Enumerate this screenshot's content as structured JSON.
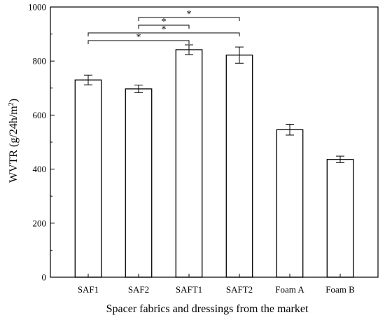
{
  "chart_data": {
    "type": "bar",
    "categories": [
      "SAF1",
      "SAF2",
      "SAFT1",
      "SAFT2",
      "Foam A",
      "Foam B"
    ],
    "values": [
      730,
      697,
      842,
      822,
      546,
      436
    ],
    "errors": [
      18,
      14,
      18,
      30,
      20,
      12
    ],
    "xlabel": "Spacer fabrics and dressings from the market",
    "ylabel_parts": {
      "main": "WVTR (g/24h/m",
      "sup": "2",
      "end": ")"
    },
    "ylim": [
      0,
      1000
    ],
    "yticks": [
      0,
      200,
      400,
      600,
      800,
      1000
    ],
    "grid": false,
    "bar_fill": "#ffffff",
    "bar_stroke": "#000000",
    "significance": [
      {
        "from": "SAF2",
        "to": "SAFT2",
        "label": "*"
      },
      {
        "from": "SAF2",
        "to": "SAFT1",
        "label": "*"
      },
      {
        "from": "SAF1",
        "to": "SAFT2",
        "label": "*"
      },
      {
        "from": "SAF1",
        "to": "SAFT1",
        "label": "*"
      }
    ]
  }
}
